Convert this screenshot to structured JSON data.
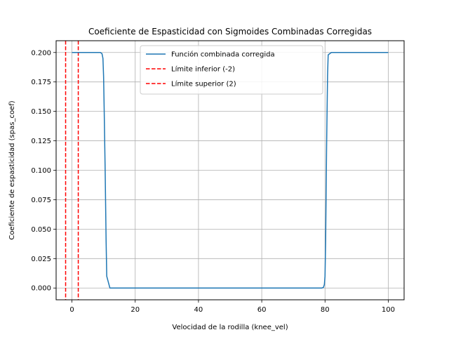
{
  "chart_data": {
    "type": "line",
    "title": "Coeficiente de Espasticidad con Sigmoides Combinadas Corregidas",
    "xlabel": "Velocidad de la rodilla (knee_vel)",
    "ylabel": "Coeficiente de espasticidad (spas_coef)",
    "xlim": [
      -5,
      105
    ],
    "ylim": [
      -0.01,
      0.21
    ],
    "grid": true,
    "legend_position": "top-center",
    "x_ticks": [
      0,
      20,
      40,
      60,
      80,
      100
    ],
    "x_tick_labels": [
      "0",
      "20",
      "40",
      "60",
      "80",
      "100"
    ],
    "y_ticks": [
      0.0,
      0.025,
      0.05,
      0.075,
      0.1,
      0.125,
      0.15,
      0.175,
      0.2
    ],
    "y_tick_labels": [
      "0.000",
      "0.025",
      "0.050",
      "0.075",
      "0.100",
      "0.125",
      "0.150",
      "0.175",
      "0.200"
    ],
    "series": [
      {
        "name": "Función combinada corregida",
        "color": "#1f77b4",
        "style": "solid",
        "x": [
          0,
          9,
          9.5,
          9.8,
          10,
          10.2,
          10.5,
          10.8,
          11,
          12,
          20,
          40,
          60,
          79,
          79.5,
          79.8,
          80,
          80.2,
          80.5,
          80.8,
          81,
          82,
          90,
          100
        ],
        "y": [
          0.2,
          0.2,
          0.199,
          0.195,
          0.18,
          0.15,
          0.1,
          0.04,
          0.01,
          0.0,
          0.0,
          0.0,
          0.0,
          0.0,
          0.0005,
          0.003,
          0.01,
          0.04,
          0.12,
          0.18,
          0.198,
          0.2,
          0.2,
          0.2
        ]
      }
    ],
    "vlines": [
      {
        "name": "Límite inferior (-2)",
        "x": -2,
        "color": "#ff0000",
        "style": "dashed"
      },
      {
        "name": "Límite superior (2)",
        "x": 2,
        "color": "#ff0000",
        "style": "dashed"
      }
    ]
  }
}
